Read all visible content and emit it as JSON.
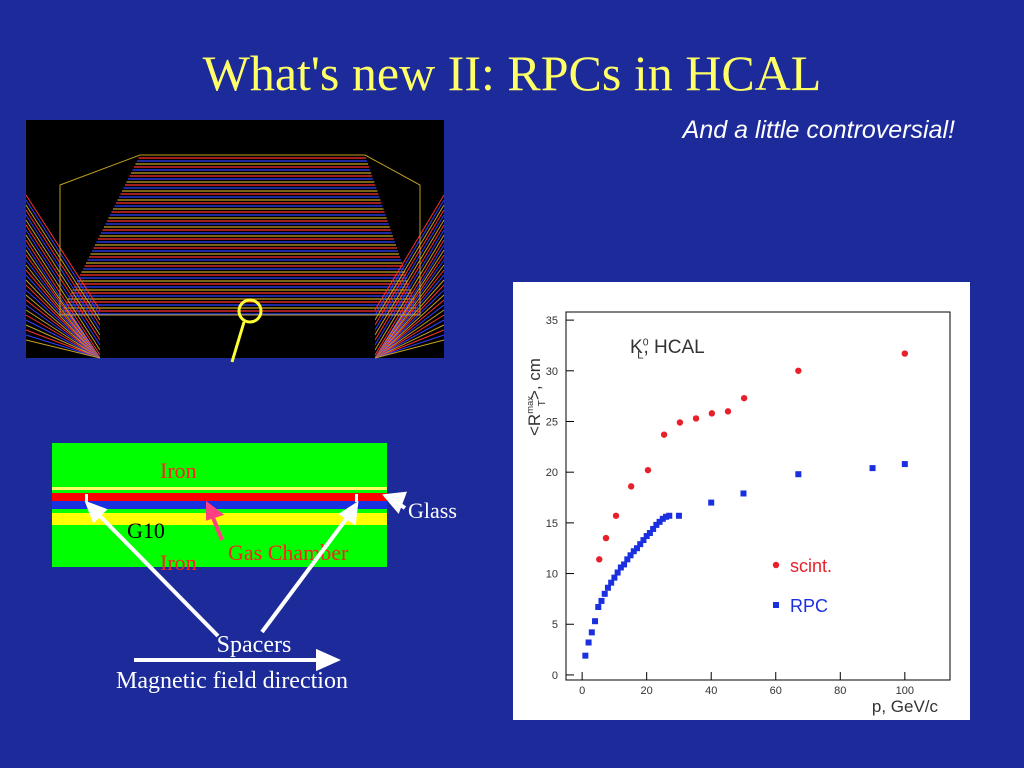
{
  "title": "What's new II: RPCs in HCAL",
  "subtitle": "And a little controversial!",
  "diagram": {
    "labels": {
      "iron_top": "Iron",
      "glass": "Glass",
      "g10": "G10",
      "iron_bottom": "Iron",
      "gas_chamber": "Gas Chamber",
      "spacers": "Spacers",
      "field": "Magnetic field direction"
    }
  },
  "chart_data": {
    "type": "scatter",
    "annotation": {
      "base": "K",
      "sup": "0",
      "sub": "L",
      "tail": ",   HCAL"
    },
    "x_label": "p, GeV/c",
    "y_label": {
      "base": "<R",
      "sup": "max",
      "sub": "T",
      "tail": ">, cm"
    },
    "xlim": [
      -5,
      114
    ],
    "ylim": [
      -0.5,
      35.8
    ],
    "xticks": [
      0,
      20,
      40,
      60,
      80,
      100
    ],
    "yticks": [
      0,
      5,
      10,
      15,
      20,
      25,
      30,
      35
    ],
    "legend": "lower right",
    "series": [
      {
        "name": "scint.",
        "color": "#e8202a",
        "marker": "circle",
        "x": [
          5.3,
          7.4,
          10.5,
          15.2,
          20.4,
          25.4,
          30.3,
          35.3,
          40.2,
          45.2,
          50.2,
          67,
          100
        ],
        "values": [
          11.4,
          13.5,
          15.7,
          18.6,
          20.2,
          23.7,
          24.9,
          25.3,
          25.8,
          26.0,
          27.3,
          30.0,
          31.7
        ]
      },
      {
        "name": "RPC",
        "color": "#1a2fe0",
        "marker": "square",
        "x": [
          1,
          2,
          3,
          4,
          5,
          6,
          7,
          8,
          9,
          10,
          11,
          12,
          13,
          14,
          15,
          16,
          17,
          18,
          19,
          20,
          21,
          22,
          23,
          24,
          25,
          26,
          27,
          30,
          40,
          50,
          67,
          90,
          100
        ],
        "values": [
          1.9,
          3.2,
          4.2,
          5.3,
          6.7,
          7.3,
          8.0,
          8.6,
          9.1,
          9.6,
          10.1,
          10.6,
          10.9,
          11.4,
          11.8,
          12.2,
          12.5,
          12.9,
          13.3,
          13.7,
          14.0,
          14.4,
          14.8,
          15.1,
          15.4,
          15.6,
          15.7,
          15.7,
          17.0,
          17.9,
          19.8,
          20.4,
          20.8
        ]
      }
    ]
  }
}
